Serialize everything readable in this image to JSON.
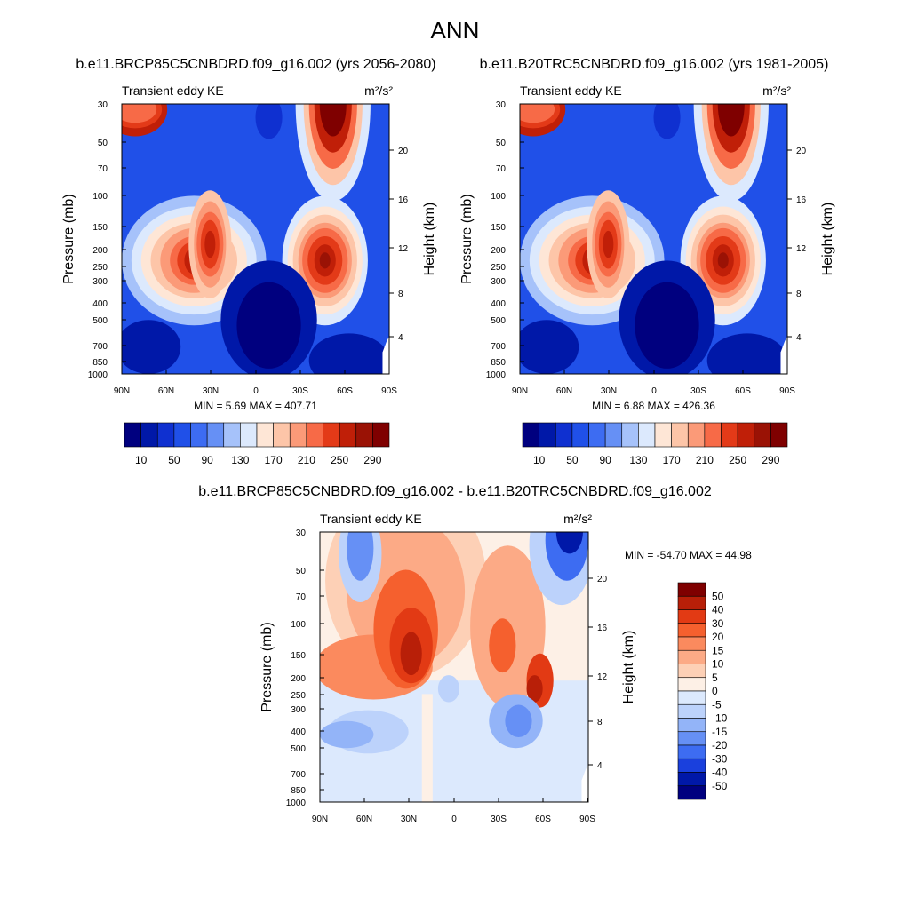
{
  "page": {
    "title": "ANN"
  },
  "chart_data": [
    {
      "type": "heatmap",
      "title": "b.e11.BRCP85C5CNBDRD.f09_g16.002 (yrs 2056-2080)",
      "subtitle_left": "Transient eddy KE",
      "units": "m²/s²",
      "ylabel": "Pressure (mb)",
      "ylabel_right": "Height (km)",
      "x_ticks": [
        "90N",
        "60N",
        "30N",
        "0",
        "30S",
        "60S",
        "90S"
      ],
      "y_ticks": [
        "30",
        "50",
        "70",
        "100",
        "150",
        "200",
        "250",
        "300",
        "400",
        "500",
        "700",
        "850",
        "1000"
      ],
      "y_ticks_right": [
        "20",
        "16",
        "12",
        "8",
        "4"
      ],
      "stats": {
        "label": "MIN =   5.69  MAX = 407.71",
        "min": 5.69,
        "max": 407.71
      },
      "colorbar": {
        "orientation": "horizontal",
        "labels": [
          "10",
          "50",
          "90",
          "130",
          "170",
          "210",
          "250",
          "290"
        ],
        "colors": [
          "#00007f",
          "#0018a8",
          "#0f30d0",
          "#2050e8",
          "#3d6cf2",
          "#6690f5",
          "#a6c2fa",
          "#dce9fd",
          "#fee6d6",
          "#fdc5a8",
          "#fb9a78",
          "#f76a47",
          "#e33a18",
          "#c01f08",
          "#9a1205",
          "#7f0000"
        ]
      }
    },
    {
      "type": "heatmap",
      "title": "b.e11.B20TRC5CNBDRD.f09_g16.002 (yrs 1981-2005)",
      "subtitle_left": "Transient eddy KE",
      "units": "m²/s²",
      "ylabel": "Pressure (mb)",
      "ylabel_right": "Height (km)",
      "x_ticks": [
        "90N",
        "60N",
        "30N",
        "0",
        "30S",
        "60S",
        "90S"
      ],
      "y_ticks": [
        "30",
        "50",
        "70",
        "100",
        "150",
        "200",
        "250",
        "300",
        "400",
        "500",
        "700",
        "850",
        "1000"
      ],
      "y_ticks_right": [
        "20",
        "16",
        "12",
        "8",
        "4"
      ],
      "stats": {
        "label": "MIN =   6.88  MAX = 426.36",
        "min": 6.88,
        "max": 426.36
      },
      "colorbar": {
        "orientation": "horizontal",
        "labels": [
          "10",
          "50",
          "90",
          "130",
          "170",
          "210",
          "250",
          "290"
        ],
        "colors": [
          "#00007f",
          "#0018a8",
          "#0f30d0",
          "#2050e8",
          "#3d6cf2",
          "#6690f5",
          "#a6c2fa",
          "#dce9fd",
          "#fee6d6",
          "#fdc5a8",
          "#fb9a78",
          "#f76a47",
          "#e33a18",
          "#c01f08",
          "#9a1205",
          "#7f0000"
        ]
      }
    },
    {
      "type": "heatmap",
      "title": "b.e11.BRCP85C5CNBDRD.f09_g16.002 - b.e11.B20TRC5CNBDRD.f09_g16.002",
      "subtitle_left": "Transient eddy KE",
      "units": "m²/s²",
      "ylabel": "Pressure (mb)",
      "ylabel_right": "Height (km)",
      "x_ticks": [
        "90N",
        "60N",
        "30N",
        "0",
        "30S",
        "60S",
        "90S"
      ],
      "y_ticks": [
        "30",
        "50",
        "70",
        "100",
        "150",
        "200",
        "250",
        "300",
        "400",
        "500",
        "700",
        "850",
        "1000"
      ],
      "y_ticks_right": [
        "20",
        "16",
        "12",
        "8",
        "4"
      ],
      "stats": {
        "label": "MIN = -54.70  MAX =  44.98",
        "min": -54.7,
        "max": 44.98
      },
      "colorbar": {
        "orientation": "vertical",
        "labels": [
          "50",
          "40",
          "30",
          "20",
          "15",
          "10",
          "5",
          "0",
          "-5",
          "-10",
          "-15",
          "-20",
          "-30",
          "-40",
          "-50"
        ],
        "colors": [
          "#7f0000",
          "#b81f08",
          "#e23a14",
          "#f5602e",
          "#fb8a5e",
          "#fcaa86",
          "#fdd0b6",
          "#fdf0e6",
          "#dce9fd",
          "#bcd2fb",
          "#93b4f8",
          "#6690f5",
          "#3d6cf2",
          "#1a40dd",
          "#0018a8",
          "#00007f"
        ]
      }
    }
  ]
}
